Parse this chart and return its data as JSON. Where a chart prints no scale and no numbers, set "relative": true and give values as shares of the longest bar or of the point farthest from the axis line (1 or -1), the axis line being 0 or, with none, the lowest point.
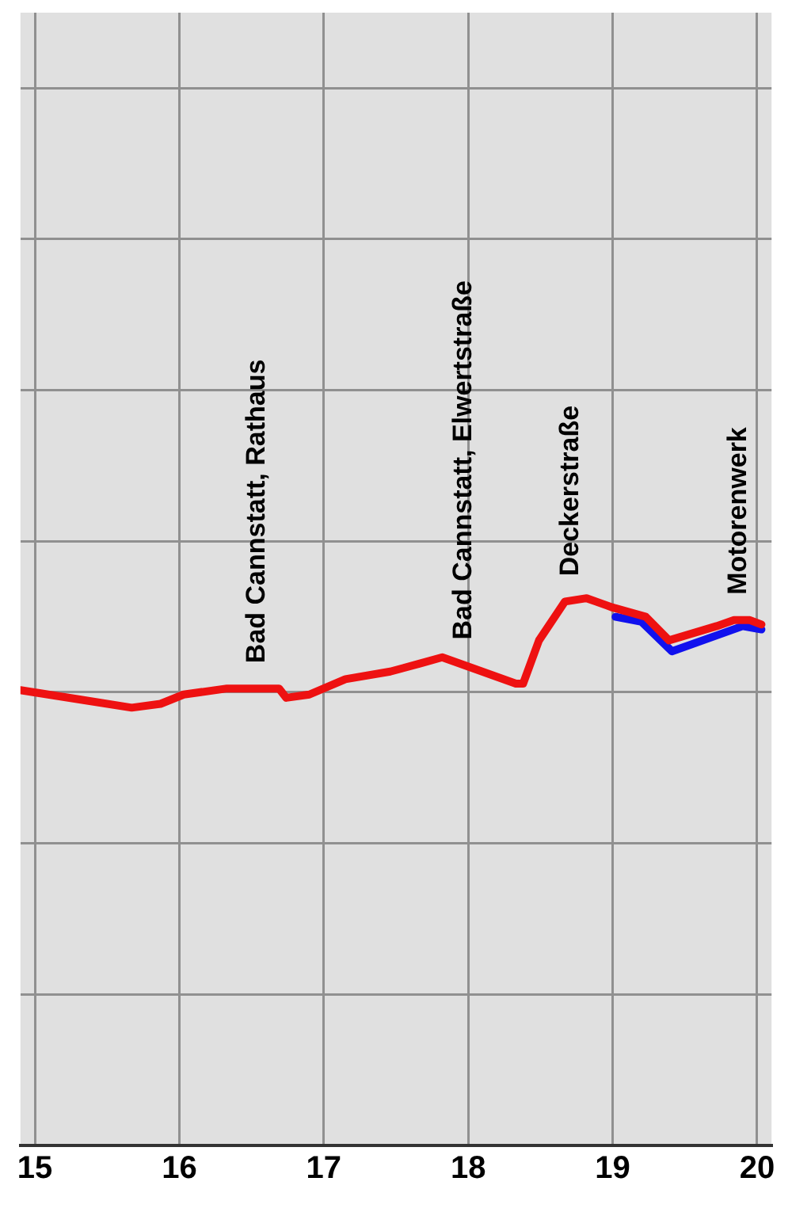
{
  "chart_data": {
    "type": "line",
    "relative": true,
    "xlim": [
      14.9,
      20.1
    ],
    "xticks": [
      15,
      16,
      17,
      18,
      19,
      20
    ],
    "grid": true,
    "tick_labels": "x",
    "marker": "none",
    "line_style": "solid",
    "series": [
      {
        "color": "#ee1111",
        "x": [
          14.9,
          15.31,
          15.67,
          15.87,
          16.03,
          16.33,
          16.69,
          16.74,
          16.9,
          17.15,
          17.46,
          17.67,
          17.82,
          17.97,
          18.33,
          18.38,
          18.49,
          18.67,
          18.82,
          19.0,
          19.23,
          19.39,
          19.72,
          19.84,
          19.95,
          20.03
        ],
        "values": [
          0.832,
          0.815,
          0.8,
          0.807,
          0.824,
          0.835,
          0.835,
          0.818,
          0.824,
          0.852,
          0.866,
          0.881,
          0.892,
          0.878,
          0.844,
          0.844,
          0.923,
          0.994,
          1.0,
          0.983,
          0.966,
          0.923,
          0.949,
          0.96,
          0.96,
          0.952
        ]
      },
      {
        "color": "#1111ee",
        "x": [
          19.02,
          19.2,
          19.41,
          19.72,
          19.9,
          20.03
        ],
        "values": [
          0.966,
          0.957,
          0.903,
          0.932,
          0.949,
          0.943
        ]
      }
    ],
    "annotations": [
      {
        "text": "Bad Cannstatt, Rathaus",
        "x": 16.54,
        "y": 0.835
      },
      {
        "text": "Bad Cannstatt, Elwertstraße",
        "x": 17.97,
        "y": 0.878
      },
      {
        "text": "Deckerstraße",
        "x": 18.71,
        "y": 0.994
      },
      {
        "text": "Motorenwerk",
        "x": 19.87,
        "y": 0.96
      }
    ]
  }
}
